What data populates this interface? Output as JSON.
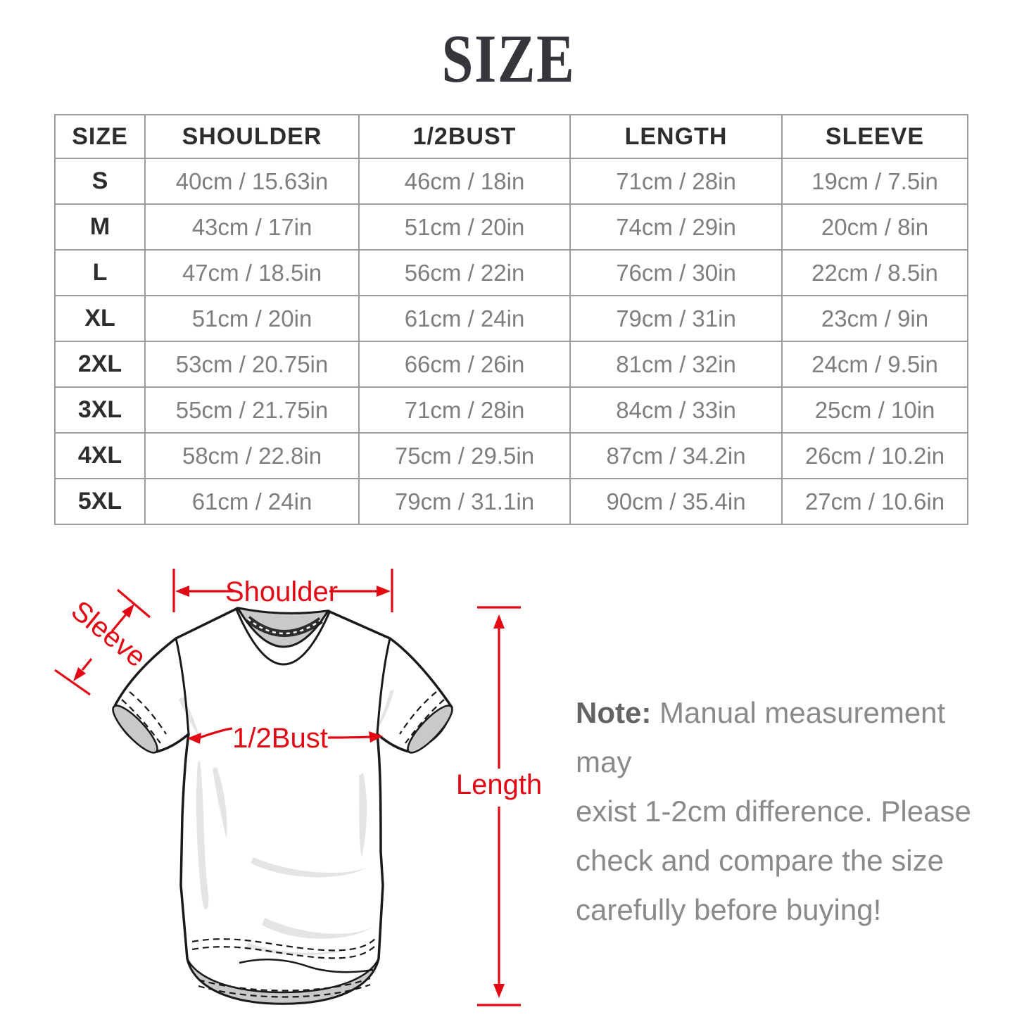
{
  "title": "SIZE",
  "colors": {
    "accent": "#e30613",
    "outline": "#1a1a1a",
    "table_border": "#9c9c9c",
    "heading_text": "#2d2d2d",
    "value_text": "#7e7e7e",
    "note_label": "#636363",
    "note_text": "#8a8a8a",
    "shirt_gray": "#c9c9c9",
    "wrinkle": "#e4e4e4"
  },
  "table": {
    "headers": [
      "SIZE",
      "SHOULDER",
      "1/2BUST",
      "LENGTH",
      "SLEEVE"
    ],
    "rows": [
      [
        "S",
        "40cm / 15.63in",
        "46cm / 18in",
        "71cm / 28in",
        "19cm / 7.5in"
      ],
      [
        "M",
        "43cm / 17in",
        "51cm / 20in",
        "74cm / 29in",
        "20cm / 8in"
      ],
      [
        "L",
        "47cm / 18.5in",
        "56cm / 22in",
        "76cm / 30in",
        "22cm / 8.5in"
      ],
      [
        "XL",
        "51cm / 20in",
        "61cm / 24in",
        "79cm / 31in",
        "23cm / 9in"
      ],
      [
        "2XL",
        "53cm / 20.75in",
        "66cm / 26in",
        "81cm / 32in",
        "24cm / 9.5in"
      ],
      [
        "3XL",
        "55cm / 21.75in",
        "71cm / 28in",
        "84cm / 33in",
        "25cm / 10in"
      ],
      [
        "4XL",
        "58cm / 22.8in",
        "75cm / 29.5in",
        "87cm / 34.2in",
        "26cm / 10.2in"
      ],
      [
        "5XL",
        "61cm / 24in",
        "79cm / 31.1in",
        "90cm / 35.4in",
        "27cm / 10.6in"
      ]
    ]
  },
  "diagram": {
    "labels": {
      "shoulder": "Shoulder",
      "sleeve": "Sleeve",
      "bust": "1/2Bust",
      "length": "Length"
    }
  },
  "note": {
    "label": "Note:",
    "lines": [
      "Manual measurement may",
      "exist 1-2cm difference. Please",
      "check and compare the size",
      "carefully before buying!"
    ]
  }
}
